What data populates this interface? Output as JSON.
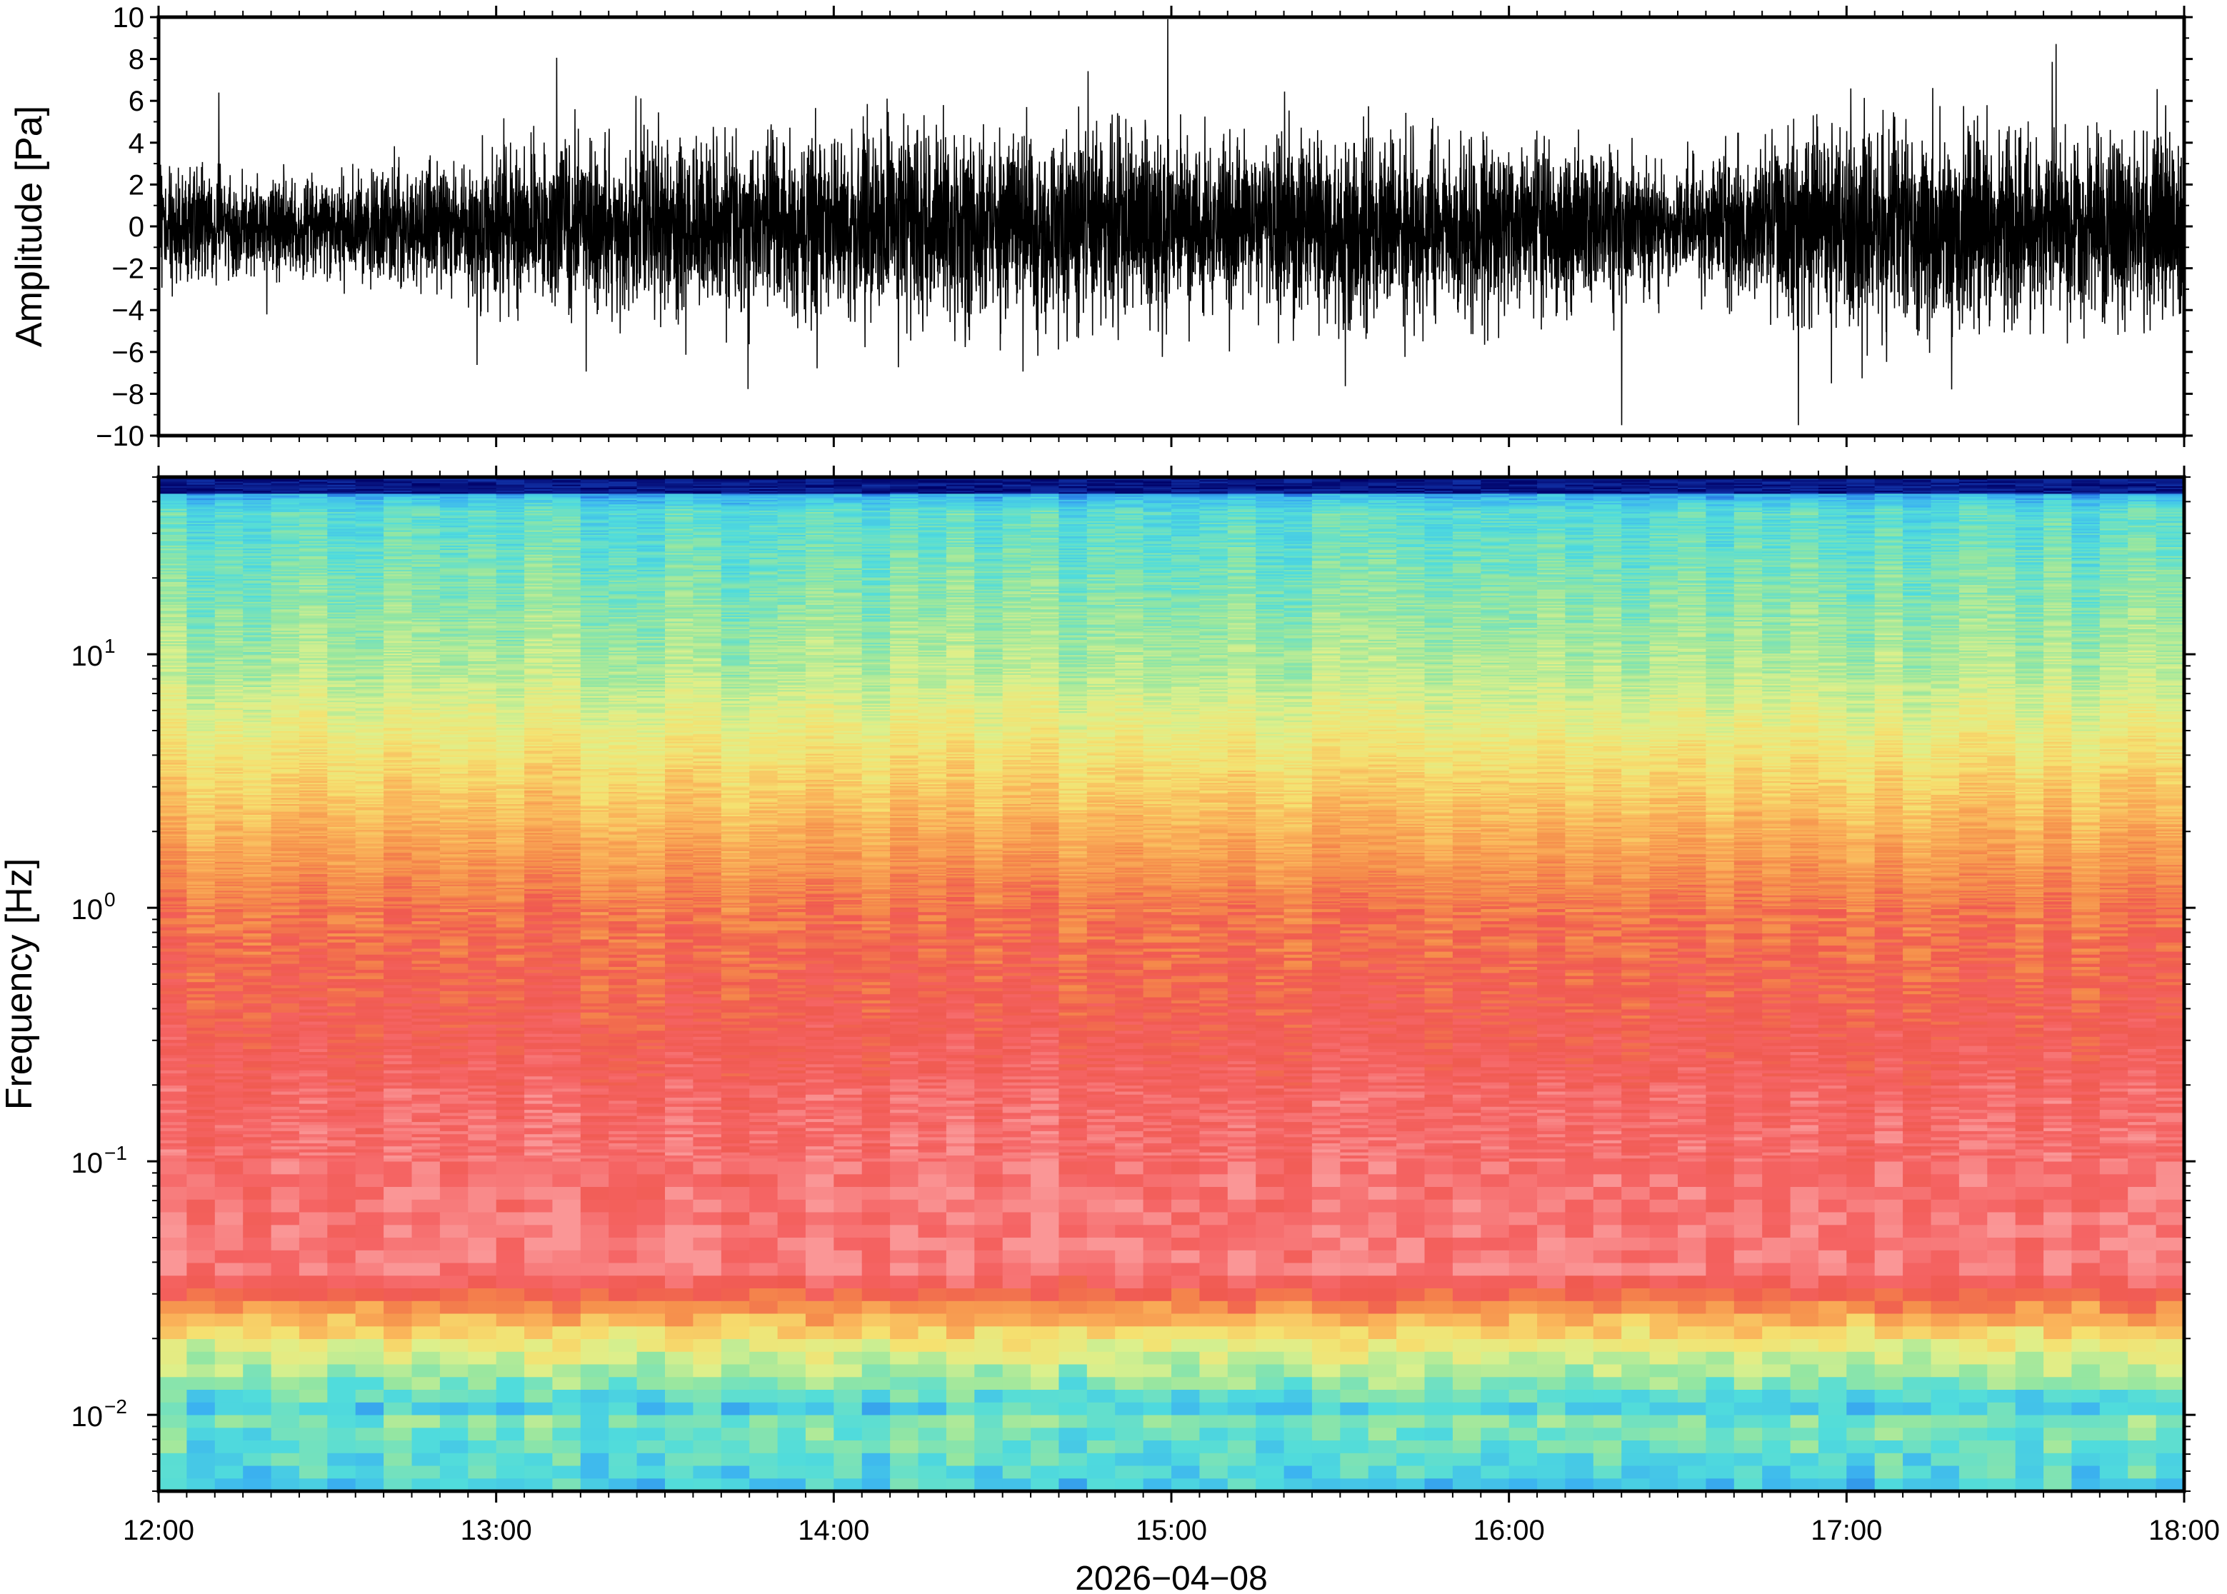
{
  "chart_data": [
    {
      "type": "line",
      "ylabel": "Amplitude [Pa]",
      "ylim": [
        -10,
        10
      ],
      "yticks": [
        "10",
        "8",
        "6",
        "4",
        "2",
        "0",
        "−2",
        "−4",
        "−6",
        "−8",
        "−10"
      ],
      "ytick_values": [
        10,
        8,
        6,
        4,
        2,
        0,
        -2,
        -4,
        -6,
        -8,
        -10
      ],
      "x_range": [
        "12:00",
        "18:00"
      ],
      "envelope": {
        "x": [
          "12:00",
          "12:30",
          "13:00",
          "13:30",
          "14:00",
          "14:30",
          "15:00",
          "15:30",
          "16:00",
          "16:30",
          "17:00",
          "17:30",
          "18:00"
        ],
        "upper": [
          3.5,
          3.0,
          4.5,
          5.5,
          5.5,
          6.0,
          5.5,
          5.5,
          5.5,
          3.5,
          6.5,
          5.5,
          6.0
        ],
        "lower": [
          -3.5,
          -3.0,
          -4.5,
          -5.5,
          -5.5,
          -6.0,
          -5.5,
          -5.5,
          -5.5,
          -3.5,
          -6.5,
          -5.5,
          -6.0
        ]
      },
      "grid": false,
      "color": "#000000"
    },
    {
      "type": "heatmap",
      "ylabel": "Frequency [Hz]",
      "yscale": "log",
      "ylim": [
        0.005,
        50
      ],
      "yticks": [
        {
          "value": 0.01,
          "base": "10",
          "exp": "−2"
        },
        {
          "value": 0.1,
          "base": "10",
          "exp": "−1"
        },
        {
          "value": 1,
          "base": "10",
          "exp": "0"
        },
        {
          "value": 10,
          "base": "10",
          "exp": "1"
        }
      ],
      "xticks": [
        "12:00",
        "13:00",
        "14:00",
        "15:00",
        "16:00",
        "17:00",
        "18:00"
      ],
      "xlabel": "2026−04−08",
      "colormap": [
        "#000066",
        "#1e5adc",
        "#3cb4f0",
        "#50dcdc",
        "#96e6a0",
        "#dcf08c",
        "#f5e170",
        "#fab45a",
        "#f58c4b",
        "#f05a50",
        "#f56464",
        "#fa9696"
      ],
      "grid": false
    }
  ]
}
